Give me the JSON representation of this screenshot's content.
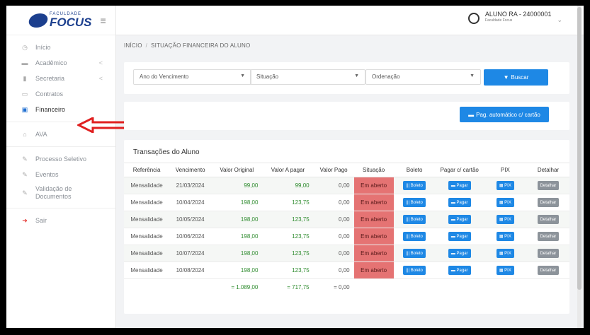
{
  "logo": {
    "small": "FACULDADE",
    "big": "FOCUS"
  },
  "sidebar": {
    "items": [
      {
        "label": "Início",
        "icon": "clock-icon"
      },
      {
        "label": "Acadêmico",
        "icon": "folder-icon",
        "chevron": "<"
      },
      {
        "label": "Secretaria",
        "icon": "document-icon",
        "chevron": "<"
      },
      {
        "label": "Contratos",
        "icon": "contract-icon"
      },
      {
        "label": "Financeiro",
        "icon": "money-icon"
      },
      {
        "label": "AVA",
        "icon": "graduation-cap-icon"
      },
      {
        "label": "Processo Seletivo",
        "icon": "edit-icon"
      },
      {
        "label": "Eventos",
        "icon": "edit-icon"
      },
      {
        "label": "Validação de Documentos",
        "icon": "edit-icon"
      },
      {
        "label": "Sair",
        "icon": "logout-icon"
      }
    ]
  },
  "header": {
    "user_name": "ALUNO RA - 24000001",
    "user_sub": "Faculdade Focus"
  },
  "breadcrumb": {
    "home": "INÍCIO",
    "sep": "/",
    "current": "SITUAÇÃO FINANCEIRA DO ALUNO"
  },
  "filters": {
    "ano": "Ano do Vencimento",
    "situacao": "Situação",
    "ordenacao": "Ordenação",
    "buscar": "Buscar"
  },
  "autopay": {
    "label": "Pag. automático c/ cartão"
  },
  "transactions": {
    "title": "Transações do Aluno",
    "columns": [
      "Referência",
      "Vencimento",
      "Valor Original",
      "Valor A pagar",
      "Valor Pago",
      "Situação",
      "Boleto",
      "Pagar c/ cartão",
      "PIX",
      "Detalhar"
    ],
    "button_labels": {
      "boleto": "Boleto",
      "pagar": "Pagar",
      "pix": "PIX",
      "detalhar": "Detalhar"
    },
    "rows": [
      {
        "ref": "Mensalidade",
        "venc": "21/03/2024",
        "orig": "99,00",
        "apagar": "99,00",
        "pago": "0,00",
        "situacao": "Em aberto"
      },
      {
        "ref": "Mensalidade",
        "venc": "10/04/2024",
        "orig": "198,00",
        "apagar": "123,75",
        "pago": "0,00",
        "situacao": "Em aberto"
      },
      {
        "ref": "Mensalidade",
        "venc": "10/05/2024",
        "orig": "198,00",
        "apagar": "123,75",
        "pago": "0,00",
        "situacao": "Em aberto"
      },
      {
        "ref": "Mensalidade",
        "venc": "10/06/2024",
        "orig": "198,00",
        "apagar": "123,75",
        "pago": "0,00",
        "situacao": "Em aberto"
      },
      {
        "ref": "Mensalidade",
        "venc": "10/07/2024",
        "orig": "198,00",
        "apagar": "123,75",
        "pago": "0,00",
        "situacao": "Em aberto"
      },
      {
        "ref": "Mensalidade",
        "venc": "10/08/2024",
        "orig": "198,00",
        "apagar": "123,75",
        "pago": "0,00",
        "situacao": "Em aberto"
      }
    ],
    "totals": {
      "orig": "= 1.089,00",
      "apagar": "= 717,75",
      "pago": "= 0,00"
    }
  },
  "colors": {
    "accent": "#1e88e5",
    "status_open": "#e57373",
    "brand": "#1c3f8e",
    "arrow": "#e02020"
  }
}
